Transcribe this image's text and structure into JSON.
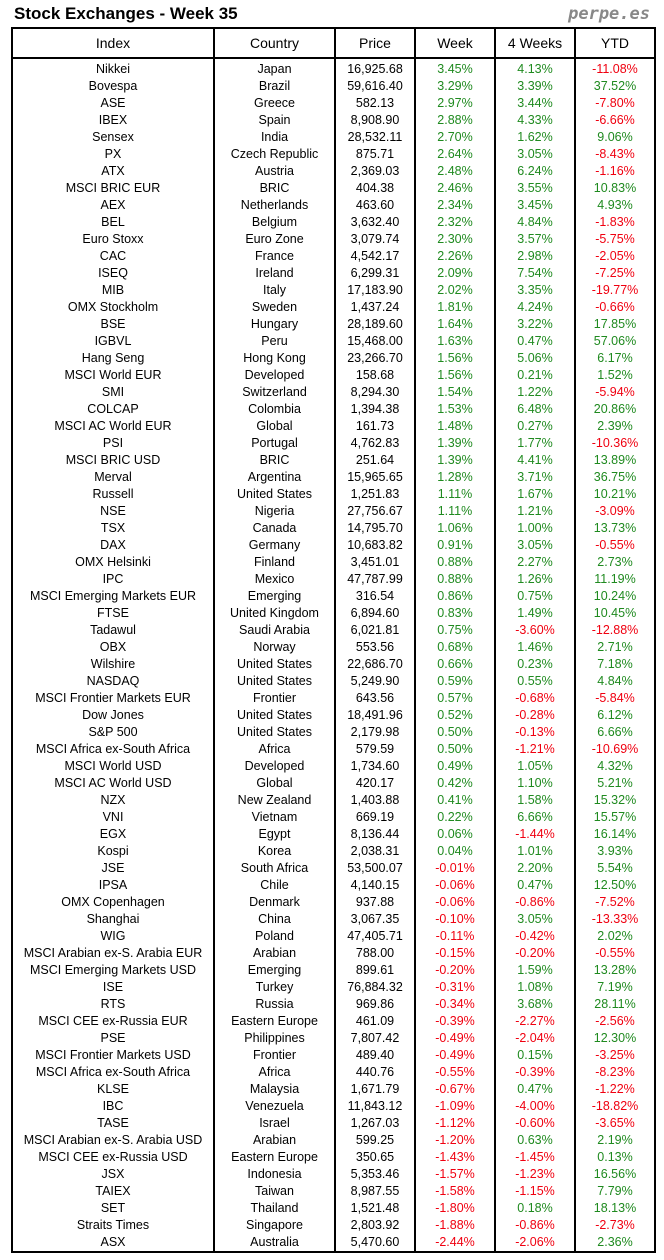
{
  "title": "Stock Exchanges - Week 35",
  "brand": "perpe.es",
  "colors": {
    "positive": "#1f8a1f",
    "negative": "#f00010"
  },
  "headers": [
    "Index",
    "Country",
    "Price",
    "Week",
    "4 Weeks",
    "YTD"
  ],
  "rows": [
    [
      "Nikkei",
      "Japan",
      "16,925.68",
      "3.45%",
      "4.13%",
      "-11.08%"
    ],
    [
      "Bovespa",
      "Brazil",
      "59,616.40",
      "3.29%",
      "3.39%",
      "37.52%"
    ],
    [
      "ASE",
      "Greece",
      "582.13",
      "2.97%",
      "3.44%",
      "-7.80%"
    ],
    [
      "IBEX",
      "Spain",
      "8,908.90",
      "2.88%",
      "4.33%",
      "-6.66%"
    ],
    [
      "Sensex",
      "India",
      "28,532.11",
      "2.70%",
      "1.62%",
      "9.06%"
    ],
    [
      "PX",
      "Czech Republic",
      "875.71",
      "2.64%",
      "3.05%",
      "-8.43%"
    ],
    [
      "ATX",
      "Austria",
      "2,369.03",
      "2.48%",
      "6.24%",
      "-1.16%"
    ],
    [
      "MSCI BRIC EUR",
      "BRIC",
      "404.38",
      "2.46%",
      "3.55%",
      "10.83%"
    ],
    [
      "AEX",
      "Netherlands",
      "463.60",
      "2.34%",
      "3.45%",
      "4.93%"
    ],
    [
      "BEL",
      "Belgium",
      "3,632.40",
      "2.32%",
      "4.84%",
      "-1.83%"
    ],
    [
      "Euro Stoxx",
      "Euro Zone",
      "3,079.74",
      "2.30%",
      "3.57%",
      "-5.75%"
    ],
    [
      "CAC",
      "France",
      "4,542.17",
      "2.26%",
      "2.98%",
      "-2.05%"
    ],
    [
      "ISEQ",
      "Ireland",
      "6,299.31",
      "2.09%",
      "7.54%",
      "-7.25%"
    ],
    [
      "MIB",
      "Italy",
      "17,183.90",
      "2.02%",
      "3.35%",
      "-19.77%"
    ],
    [
      "OMX Stockholm",
      "Sweden",
      "1,437.24",
      "1.81%",
      "4.24%",
      "-0.66%"
    ],
    [
      "BSE",
      "Hungary",
      "28,189.60",
      "1.64%",
      "3.22%",
      "17.85%"
    ],
    [
      "IGBVL",
      "Peru",
      "15,468.00",
      "1.63%",
      "0.47%",
      "57.06%"
    ],
    [
      "Hang Seng",
      "Hong Kong",
      "23,266.70",
      "1.56%",
      "5.06%",
      "6.17%"
    ],
    [
      "MSCI World EUR",
      "Developed",
      "158.68",
      "1.56%",
      "0.21%",
      "1.52%"
    ],
    [
      "SMI",
      "Switzerland",
      "8,294.30",
      "1.54%",
      "1.22%",
      "-5.94%"
    ],
    [
      "COLCAP",
      "Colombia",
      "1,394.38",
      "1.53%",
      "6.48%",
      "20.86%"
    ],
    [
      "MSCI AC World EUR",
      "Global",
      "161.73",
      "1.48%",
      "0.27%",
      "2.39%"
    ],
    [
      "PSI",
      "Portugal",
      "4,762.83",
      "1.39%",
      "1.77%",
      "-10.36%"
    ],
    [
      "MSCI BRIC USD",
      "BRIC",
      "251.64",
      "1.39%",
      "4.41%",
      "13.89%"
    ],
    [
      "Merval",
      "Argentina",
      "15,965.65",
      "1.28%",
      "3.71%",
      "36.75%"
    ],
    [
      "Russell",
      "United States",
      "1,251.83",
      "1.11%",
      "1.67%",
      "10.21%"
    ],
    [
      "NSE",
      "Nigeria",
      "27,756.67",
      "1.11%",
      "1.21%",
      "-3.09%"
    ],
    [
      "TSX",
      "Canada",
      "14,795.70",
      "1.06%",
      "1.00%",
      "13.73%"
    ],
    [
      "DAX",
      "Germany",
      "10,683.82",
      "0.91%",
      "3.05%",
      "-0.55%"
    ],
    [
      "OMX Helsinki",
      "Finland",
      "3,451.01",
      "0.88%",
      "2.27%",
      "2.73%"
    ],
    [
      "IPC",
      "Mexico",
      "47,787.99",
      "0.88%",
      "1.26%",
      "11.19%"
    ],
    [
      "MSCI Emerging Markets EUR",
      "Emerging",
      "316.54",
      "0.86%",
      "0.75%",
      "10.24%"
    ],
    [
      "FTSE",
      "United Kingdom",
      "6,894.60",
      "0.83%",
      "1.49%",
      "10.45%"
    ],
    [
      "Tadawul",
      "Saudi Arabia",
      "6,021.81",
      "0.75%",
      "-3.60%",
      "-12.88%"
    ],
    [
      "OBX",
      "Norway",
      "553.56",
      "0.68%",
      "1.46%",
      "2.71%"
    ],
    [
      "Wilshire",
      "United States",
      "22,686.70",
      "0.66%",
      "0.23%",
      "7.18%"
    ],
    [
      "NASDAQ",
      "United States",
      "5,249.90",
      "0.59%",
      "0.55%",
      "4.84%"
    ],
    [
      "MSCI Frontier Markets EUR",
      "Frontier",
      "643.56",
      "0.57%",
      "-0.68%",
      "-5.84%"
    ],
    [
      "Dow Jones",
      "United States",
      "18,491.96",
      "0.52%",
      "-0.28%",
      "6.12%"
    ],
    [
      "S&P 500",
      "United States",
      "2,179.98",
      "0.50%",
      "-0.13%",
      "6.66%"
    ],
    [
      "MSCI Africa ex-South Africa",
      "Africa",
      "579.59",
      "0.50%",
      "-1.21%",
      "-10.69%"
    ],
    [
      "MSCI World USD",
      "Developed",
      "1,734.60",
      "0.49%",
      "1.05%",
      "4.32%"
    ],
    [
      "MSCI AC World USD",
      "Global",
      "420.17",
      "0.42%",
      "1.10%",
      "5.21%"
    ],
    [
      "NZX",
      "New Zealand",
      "1,403.88",
      "0.41%",
      "1.58%",
      "15.32%"
    ],
    [
      "VNI",
      "Vietnam",
      "669.19",
      "0.22%",
      "6.66%",
      "15.57%"
    ],
    [
      "EGX",
      "Egypt",
      "8,136.44",
      "0.06%",
      "-1.44%",
      "16.14%"
    ],
    [
      "Kospi",
      "Korea",
      "2,038.31",
      "0.04%",
      "1.01%",
      "3.93%"
    ],
    [
      "JSE",
      "South Africa",
      "53,500.07",
      "-0.01%",
      "2.20%",
      "5.54%"
    ],
    [
      "IPSA",
      "Chile",
      "4,140.15",
      "-0.06%",
      "0.47%",
      "12.50%"
    ],
    [
      "OMX Copenhagen",
      "Denmark",
      "937.88",
      "-0.06%",
      "-0.86%",
      "-7.52%"
    ],
    [
      "Shanghai",
      "China",
      "3,067.35",
      "-0.10%",
      "3.05%",
      "-13.33%"
    ],
    [
      "WIG",
      "Poland",
      "47,405.71",
      "-0.11%",
      "-0.42%",
      "2.02%"
    ],
    [
      "MSCI Arabian ex-S. Arabia EUR",
      "Arabian",
      "788.00",
      "-0.15%",
      "-0.20%",
      "-0.55%"
    ],
    [
      "MSCI Emerging Markets USD",
      "Emerging",
      "899.61",
      "-0.20%",
      "1.59%",
      "13.28%"
    ],
    [
      "ISE",
      "Turkey",
      "76,884.32",
      "-0.31%",
      "1.08%",
      "7.19%"
    ],
    [
      "RTS",
      "Russia",
      "969.86",
      "-0.34%",
      "3.68%",
      "28.11%"
    ],
    [
      "MSCI CEE ex-Russia EUR",
      "Eastern Europe",
      "461.09",
      "-0.39%",
      "-2.27%",
      "-2.56%"
    ],
    [
      "PSE",
      "Philippines",
      "7,807.42",
      "-0.49%",
      "-2.04%",
      "12.30%"
    ],
    [
      "MSCI Frontier Markets USD",
      "Frontier",
      "489.40",
      "-0.49%",
      "0.15%",
      "-3.25%"
    ],
    [
      "MSCI Africa ex-South Africa",
      "Africa",
      "440.76",
      "-0.55%",
      "-0.39%",
      "-8.23%"
    ],
    [
      "KLSE",
      "Malaysia",
      "1,671.79",
      "-0.67%",
      "0.47%",
      "-1.22%"
    ],
    [
      "IBC",
      "Venezuela",
      "11,843.12",
      "-1.09%",
      "-4.00%",
      "-18.82%"
    ],
    [
      "TASE",
      "Israel",
      "1,267.03",
      "-1.12%",
      "-0.60%",
      "-3.65%"
    ],
    [
      "MSCI Arabian ex-S. Arabia USD",
      "Arabian",
      "599.25",
      "-1.20%",
      "0.63%",
      "2.19%"
    ],
    [
      "MSCI CEE ex-Russia USD",
      "Eastern Europe",
      "350.65",
      "-1.43%",
      "-1.45%",
      "0.13%"
    ],
    [
      "JSX",
      "Indonesia",
      "5,353.46",
      "-1.57%",
      "-1.23%",
      "16.56%"
    ],
    [
      "TAIEX",
      "Taiwan",
      "8,987.55",
      "-1.58%",
      "-1.15%",
      "7.79%"
    ],
    [
      "SET",
      "Thailand",
      "1,521.48",
      "-1.80%",
      "0.18%",
      "18.13%"
    ],
    [
      "Straits Times",
      "Singapore",
      "2,803.92",
      "-1.88%",
      "-0.86%",
      "-2.73%"
    ],
    [
      "ASX",
      "Australia",
      "5,470.60",
      "-2.44%",
      "-2.06%",
      "2.36%"
    ]
  ]
}
